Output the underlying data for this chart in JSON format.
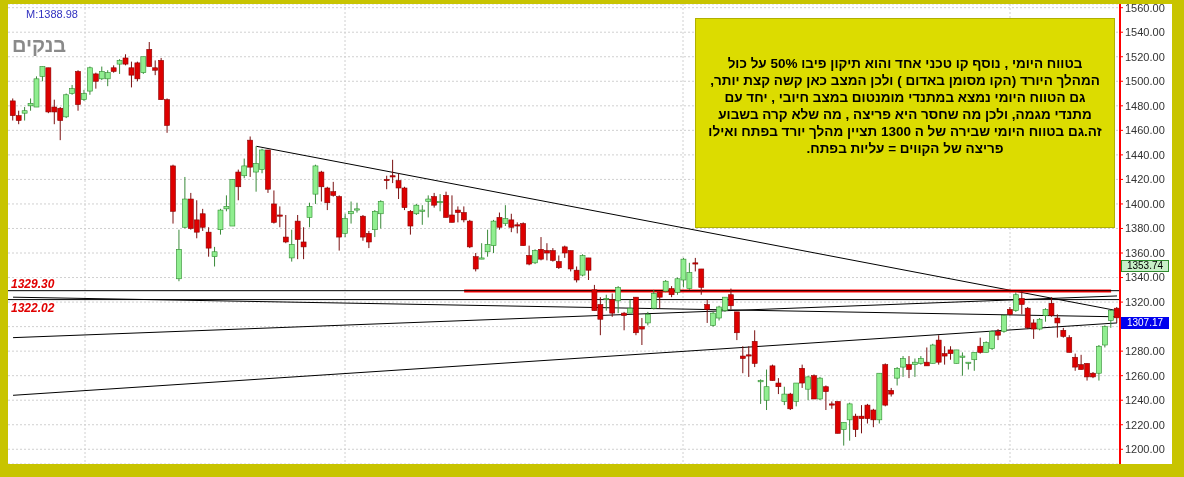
{
  "chart_data": {
    "type": "candlestick",
    "title": "בנקים",
    "categories": [
      null,
      null,
      null,
      null,
      null,
      null,
      null,
      null,
      null,
      null,
      null,
      null,
      null,
      null,
      null,
      null,
      null,
      null,
      null,
      null,
      null,
      null,
      null,
      null,
      null,
      null,
      null,
      null,
      null,
      null,
      null,
      null,
      null,
      null,
      null,
      null,
      null,
      null,
      null,
      null,
      null,
      null,
      null,
      null,
      null,
      null,
      null,
      null,
      null,
      null,
      null,
      null,
      null,
      null,
      null,
      null,
      null,
      null,
      null,
      null,
      null,
      null,
      null,
      null,
      null,
      null,
      null,
      null,
      null,
      null,
      null,
      null,
      null,
      null,
      null,
      null,
      null,
      null,
      null,
      null,
      null,
      null,
      null,
      null,
      null,
      null,
      null,
      null,
      null,
      null,
      null,
      null,
      null,
      null,
      null,
      null,
      null,
      null,
      null,
      null,
      null,
      null,
      null,
      null,
      null,
      null,
      null,
      null,
      null,
      null,
      null,
      null,
      null,
      null,
      null,
      null,
      null,
      null,
      null,
      null,
      null,
      null,
      null,
      null,
      null,
      null,
      null,
      null,
      null,
      null,
      null,
      null,
      null,
      null,
      null,
      null,
      null,
      null,
      null,
      null,
      null,
      null,
      null,
      null,
      null,
      null,
      null,
      null,
      null,
      null,
      null,
      null,
      null,
      null,
      null,
      null,
      null,
      null,
      null,
      null,
      null,
      null,
      null,
      null,
      null,
      null,
      null,
      null,
      null,
      null,
      null,
      null,
      null,
      null,
      null,
      null,
      null,
      null,
      null,
      null,
      null,
      null,
      null,
      null,
      null,
      null,
      null
    ],
    "ohlc": [
      [
        1484,
        1486,
        1468,
        1472
      ],
      [
        1472,
        1476,
        1465,
        1468
      ],
      [
        1474,
        1479,
        1468,
        1476
      ],
      [
        1480,
        1486,
        1476,
        1482
      ],
      [
        1479,
        1504,
        1479,
        1502
      ],
      [
        1504,
        1512,
        1500,
        1512
      ],
      [
        1511,
        1511,
        1474,
        1475
      ],
      [
        1479,
        1485,
        1465,
        1475
      ],
      [
        1478,
        1479,
        1452,
        1468
      ],
      [
        1471,
        1490,
        1470,
        1489
      ],
      [
        1490,
        1497,
        1489,
        1494
      ],
      [
        1508,
        1509,
        1476,
        1481
      ],
      [
        1485,
        1493,
        1484,
        1490
      ],
      [
        1492,
        1512,
        1489,
        1511
      ],
      [
        1506,
        1507,
        1494,
        1500
      ],
      [
        1502,
        1512,
        1501,
        1508
      ],
      [
        1502,
        1509,
        1496,
        1507
      ],
      [
        1511,
        1513,
        1507,
        1508
      ],
      [
        1514,
        1518,
        1506,
        1517
      ],
      [
        1519,
        1522,
        1513,
        1514
      ],
      [
        1511,
        1516,
        1495,
        1505
      ],
      [
        1515,
        1516,
        1500,
        1502
      ],
      [
        1507,
        1520,
        1506,
        1520
      ],
      [
        1526,
        1532,
        1512,
        1512
      ],
      [
        1511,
        1517,
        1505,
        1509
      ],
      [
        1517,
        1519,
        1485,
        1485
      ],
      [
        1485,
        1486,
        1458,
        1464
      ],
      [
        1431,
        1432,
        1384,
        1394
      ],
      [
        1339,
        1379,
        1337,
        1363
      ],
      [
        1381,
        1422,
        1380,
        1404
      ],
      [
        1404,
        1409,
        1379,
        1380
      ],
      [
        1387,
        1403,
        1372,
        1377
      ],
      [
        1392,
        1396,
        1378,
        1381
      ],
      [
        1377,
        1381,
        1357,
        1364
      ],
      [
        1357,
        1365,
        1349,
        1361
      ],
      [
        1379,
        1396,
        1375,
        1395
      ],
      [
        1396,
        1407,
        1394,
        1398
      ],
      [
        1382,
        1420,
        1382,
        1420
      ],
      [
        1426,
        1428,
        1403,
        1414
      ],
      [
        1423,
        1437,
        1421,
        1431
      ],
      [
        1452,
        1455,
        1422,
        1430
      ],
      [
        1426,
        1447,
        1410,
        1433
      ],
      [
        1428,
        1445,
        1425,
        1444
      ],
      [
        1444,
        1444,
        1409,
        1412
      ],
      [
        1400,
        1411,
        1384,
        1385
      ],
      [
        1391,
        1398,
        1381,
        1390
      ],
      [
        1373,
        1391,
        1368,
        1369
      ],
      [
        1356,
        1379,
        1353,
        1367
      ],
      [
        1386,
        1391,
        1355,
        1371
      ],
      [
        1369,
        1381,
        1355,
        1365
      ],
      [
        1389,
        1401,
        1381,
        1398
      ],
      [
        1408,
        1432,
        1400,
        1431
      ],
      [
        1426,
        1427,
        1402,
        1414
      ],
      [
        1413,
        1414,
        1395,
        1401
      ],
      [
        1410,
        1418,
        1406,
        1407
      ],
      [
        1406,
        1407,
        1362,
        1373
      ],
      [
        1376,
        1392,
        1373,
        1388
      ],
      [
        1392,
        1402,
        1384,
        1394
      ],
      [
        1395,
        1401,
        1393,
        1396
      ],
      [
        1390,
        1391,
        1370,
        1373
      ],
      [
        1376,
        1378,
        1364,
        1369
      ],
      [
        1379,
        1395,
        1373,
        1394
      ],
      [
        1392,
        1403,
        1380,
        1402
      ],
      [
        1420,
        1423,
        1412,
        1419
      ],
      [
        1423,
        1436,
        1417,
        1422
      ],
      [
        1419,
        1425,
        1404,
        1413
      ],
      [
        1413,
        1414,
        1395,
        1397
      ],
      [
        1394,
        1395,
        1375,
        1382
      ],
      [
        1392,
        1400,
        1391,
        1399
      ],
      [
        1394,
        1399,
        1383,
        1395
      ],
      [
        1402,
        1407,
        1389,
        1404
      ],
      [
        1406,
        1409,
        1397,
        1399
      ],
      [
        1401,
        1408,
        1394,
        1402
      ],
      [
        1407,
        1410,
        1389,
        1389
      ],
      [
        1391,
        1407,
        1385,
        1385
      ],
      [
        1395,
        1398,
        1385,
        1393
      ],
      [
        1393,
        1398,
        1385,
        1387
      ],
      [
        1386,
        1387,
        1364,
        1365
      ],
      [
        1357,
        1360,
        1345,
        1347
      ],
      [
        1355,
        1368,
        1355,
        1356
      ],
      [
        1361,
        1379,
        1357,
        1367
      ],
      [
        1366,
        1387,
        1360,
        1386
      ],
      [
        1389,
        1393,
        1379,
        1381
      ],
      [
        1384,
        1399,
        1382,
        1388
      ],
      [
        1387,
        1392,
        1377,
        1381
      ],
      [
        1383,
        1385,
        1376,
        1382
      ],
      [
        1384,
        1385,
        1366,
        1366
      ],
      [
        1358,
        1366,
        1350,
        1351
      ],
      [
        1352,
        1363,
        1351,
        1362
      ],
      [
        1363,
        1373,
        1354,
        1355
      ],
      [
        1362,
        1368,
        1354,
        1360
      ],
      [
        1362,
        1364,
        1353,
        1354
      ],
      [
        1353,
        1358,
        1347,
        1348
      ],
      [
        1365,
        1366,
        1356,
        1360
      ],
      [
        1362,
        1362,
        1345,
        1347
      ],
      [
        1346,
        1349,
        1336,
        1338
      ],
      [
        1342,
        1359,
        1341,
        1358
      ],
      [
        1356,
        1356,
        1338,
        1346
      ],
      [
        1330,
        1334,
        1313,
        1313
      ],
      [
        1318,
        1324,
        1293,
        1306
      ],
      [
        1322,
        1326,
        1313,
        1323
      ],
      [
        1322,
        1327,
        1308,
        1311
      ],
      [
        1321,
        1333,
        1311,
        1332
      ],
      [
        1311,
        1312,
        1297,
        1309
      ],
      [
        1311,
        1322,
        1311,
        1315
      ],
      [
        1324,
        1324,
        1293,
        1295
      ],
      [
        1300,
        1307,
        1285,
        1298
      ],
      [
        1303,
        1312,
        1301,
        1310
      ],
      [
        1315,
        1330,
        1314,
        1327
      ],
      [
        1328,
        1328,
        1315,
        1324
      ],
      [
        1329,
        1338,
        1328,
        1337
      ],
      [
        1331,
        1333,
        1324,
        1326
      ],
      [
        1328,
        1340,
        1326,
        1339
      ],
      [
        1338,
        1356,
        1332,
        1355
      ],
      [
        1331,
        1352,
        1330,
        1344
      ],
      [
        1352,
        1356,
        1345,
        1351
      ],
      [
        1347,
        1347,
        1326,
        1332
      ],
      [
        1318,
        1322,
        1303,
        1314
      ],
      [
        1301,
        1312,
        1300,
        1311
      ],
      [
        1307,
        1317,
        1305,
        1316
      ],
      [
        1313,
        1324,
        1312,
        1324
      ],
      [
        1326,
        1331,
        1314,
        1317
      ],
      [
        1312,
        1312,
        1289,
        1295
      ],
      [
        1276,
        1284,
        1262,
        1274
      ],
      [
        1277,
        1284,
        1259,
        1276
      ],
      [
        1288,
        1297,
        1267,
        1270
      ],
      [
        1255,
        1257,
        1237,
        1256
      ],
      [
        1240,
        1265,
        1232,
        1251
      ],
      [
        1268,
        1269,
        1256,
        1256
      ],
      [
        1254,
        1258,
        1245,
        1251
      ],
      [
        1239,
        1251,
        1236,
        1245
      ],
      [
        1245,
        1246,
        1232,
        1233
      ],
      [
        1239,
        1254,
        1235,
        1254
      ],
      [
        1266,
        1269,
        1250,
        1254
      ],
      [
        1249,
        1260,
        1240,
        1259
      ],
      [
        1260,
        1261,
        1241,
        1241
      ],
      [
        1241,
        1259,
        1240,
        1258
      ],
      [
        1251,
        1252,
        1232,
        1247
      ],
      [
        1237,
        1239,
        1233,
        1236
      ],
      [
        1239,
        1239,
        1213,
        1213
      ],
      [
        1216,
        1222,
        1203,
        1222
      ],
      [
        1224,
        1238,
        1207,
        1237
      ],
      [
        1227,
        1229,
        1210,
        1216
      ],
      [
        1227,
        1236,
        1213,
        1225
      ],
      [
        1236,
        1237,
        1221,
        1225
      ],
      [
        1232,
        1233,
        1218,
        1224
      ],
      [
        1224,
        1262,
        1221,
        1262
      ],
      [
        1269,
        1270,
        1235,
        1236
      ],
      [
        1248,
        1250,
        1243,
        1245
      ],
      [
        1258,
        1267,
        1252,
        1266
      ],
      [
        1267,
        1276,
        1259,
        1274
      ],
      [
        1269,
        1276,
        1258,
        1265
      ],
      [
        1269,
        1274,
        1259,
        1271
      ],
      [
        1270,
        1276,
        1269,
        1274
      ],
      [
        1271,
        1283,
        1268,
        1268
      ],
      [
        1270,
        1286,
        1270,
        1285
      ],
      [
        1289,
        1293,
        1269,
        1271
      ],
      [
        1278,
        1284,
        1269,
        1276
      ],
      [
        1281,
        1284,
        1273,
        1278
      ],
      [
        1270,
        1281,
        1270,
        1281
      ],
      [
        1275,
        1279,
        1260,
        1276
      ],
      [
        1270,
        1271,
        1265,
        1271
      ],
      [
        1273,
        1279,
        1264,
        1279
      ],
      [
        1284,
        1291,
        1278,
        1279
      ],
      [
        1279,
        1288,
        1279,
        1287
      ],
      [
        1282,
        1297,
        1281,
        1296
      ],
      [
        1296,
        1298,
        1289,
        1293
      ],
      [
        1296,
        1310,
        1295,
        1309
      ],
      [
        1314,
        1316,
        1309,
        1310
      ],
      [
        1313,
        1328,
        1312,
        1326
      ],
      [
        1323,
        1329,
        1310,
        1318
      ],
      [
        1315,
        1316,
        1298,
        1299
      ],
      [
        1303,
        1306,
        1290,
        1298
      ],
      [
        1298,
        1307,
        1297,
        1306
      ],
      [
        1309,
        1315,
        1304,
        1314
      ],
      [
        1319,
        1324,
        1308,
        1309
      ],
      [
        1307,
        1310,
        1291,
        1303
      ],
      [
        1297,
        1299,
        1291,
        1292
      ],
      [
        1291,
        1293,
        1279,
        1279
      ],
      [
        1275,
        1278,
        1264,
        1267
      ],
      [
        1269,
        1277,
        1265,
        1265
      ],
      [
        1270,
        1270,
        1256,
        1259
      ],
      [
        1262,
        1263,
        1258,
        1259
      ],
      [
        1262,
        1285,
        1256,
        1284
      ],
      [
        1285,
        1301,
        1283,
        1300
      ],
      [
        1305,
        1314,
        1299,
        1313
      ],
      [
        1315,
        1316,
        1303,
        1307.17
      ]
    ],
    "series": [
      {
        "type": "line",
        "color": "#000000",
        "values": [
          null,
          null,
          null,
          null,
          null,
          null,
          null,
          null,
          null,
          null,
          null,
          null,
          null,
          null,
          null,
          null,
          null,
          null,
          null,
          null,
          null,
          null,
          null,
          null,
          null,
          null,
          null,
          null,
          null,
          null,
          null,
          null,
          null,
          null,
          null,
          null,
          null,
          null,
          null,
          null,
          null,
          1447,
          null,
          null,
          null,
          null,
          null,
          null,
          null,
          null,
          null,
          null,
          null,
          null,
          null,
          null,
          null,
          null,
          null,
          null,
          null,
          null,
          null,
          null,
          null,
          null,
          null,
          null,
          null,
          null,
          null,
          null,
          null,
          null,
          null,
          null,
          null,
          null,
          null,
          null,
          null,
          null,
          null,
          null,
          null,
          null,
          null,
          null,
          null,
          null,
          null,
          null,
          null,
          null,
          null,
          null,
          null,
          null,
          null,
          null,
          null,
          null,
          null,
          null,
          null,
          null,
          null,
          null,
          null,
          null,
          null,
          null,
          null,
          null,
          null,
          null,
          null,
          null,
          null,
          null,
          null,
          null,
          null,
          null,
          null,
          null,
          null,
          null,
          null,
          null,
          null,
          null,
          null,
          null,
          null,
          null,
          null,
          null,
          null,
          null,
          null,
          null,
          null,
          null,
          null,
          null,
          null,
          null,
          null,
          null,
          null,
          null,
          null,
          null,
          null,
          null,
          null,
          null,
          null,
          null,
          null,
          null,
          null,
          null,
          null,
          null,
          null,
          null,
          null,
          null,
          null,
          null,
          null,
          null,
          null,
          null,
          null,
          null,
          null,
          null,
          null,
          null,
          null,
          null,
          null,
          null,
          1313
        ]
      },
      {
        "type": "line",
        "color": "#000000",
        "values": [
          1291,
          null,
          null,
          null,
          null,
          null,
          null,
          null,
          null,
          null,
          null,
          null,
          null,
          null,
          null,
          null,
          null,
          null,
          null,
          null,
          null,
          null,
          null,
          null,
          null,
          null,
          null,
          null,
          null,
          null,
          null,
          null,
          null,
          null,
          null,
          null,
          null,
          null,
          null,
          null,
          null,
          null,
          null,
          null,
          null,
          null,
          null,
          null,
          null,
          null,
          null,
          null,
          null,
          null,
          null,
          null,
          null,
          null,
          null,
          null,
          null,
          null,
          null,
          null,
          null,
          null,
          null,
          null,
          null,
          null,
          null,
          null,
          null,
          null,
          null,
          null,
          null,
          null,
          null,
          null,
          null,
          null,
          null,
          null,
          null,
          null,
          null,
          null,
          null,
          null,
          null,
          null,
          null,
          null,
          null,
          null,
          null,
          null,
          null,
          null,
          null,
          null,
          null,
          null,
          null,
          null,
          null,
          null,
          null,
          null,
          null,
          null,
          null,
          null,
          null,
          null,
          null,
          null,
          null,
          null,
          null,
          null,
          null,
          null,
          null,
          null,
          null,
          null,
          null,
          null,
          null,
          null,
          null,
          null,
          null,
          null,
          null,
          null,
          null,
          null,
          null,
          null,
          null,
          null,
          null,
          null,
          null,
          null,
          null,
          null,
          null,
          null,
          null,
          null,
          null,
          null,
          null,
          null,
          null,
          null,
          null,
          null,
          null,
          null,
          null,
          null,
          null,
          null,
          null,
          null,
          null,
          null,
          null,
          null,
          null,
          null,
          null,
          null,
          null,
          null,
          null,
          null,
          null,
          null,
          null,
          null,
          1325
        ]
      },
      {
        "type": "line",
        "color": "#000000",
        "values": [
          1324,
          null,
          null,
          null,
          null,
          null,
          null,
          null,
          null,
          null,
          null,
          null,
          null,
          null,
          null,
          null,
          null,
          null,
          null,
          null,
          null,
          null,
          null,
          null,
          null,
          null,
          null,
          null,
          null,
          null,
          null,
          null,
          null,
          null,
          null,
          null,
          null,
          null,
          null,
          null,
          null,
          null,
          null,
          null,
          null,
          null,
          null,
          null,
          null,
          null,
          null,
          null,
          null,
          null,
          null,
          null,
          null,
          null,
          null,
          null,
          null,
          null,
          null,
          null,
          null,
          null,
          null,
          null,
          null,
          null,
          null,
          null,
          null,
          null,
          null,
          null,
          null,
          null,
          null,
          null,
          null,
          null,
          null,
          null,
          null,
          null,
          null,
          null,
          null,
          null,
          null,
          null,
          null,
          null,
          null,
          null,
          null,
          null,
          null,
          null,
          null,
          null,
          null,
          null,
          null,
          null,
          null,
          null,
          null,
          null,
          null,
          null,
          null,
          null,
          null,
          null,
          null,
          null,
          null,
          null,
          null,
          null,
          null,
          null,
          null,
          null,
          null,
          null,
          null,
          null,
          null,
          null,
          null,
          null,
          null,
          null,
          null,
          null,
          null,
          null,
          null,
          null,
          null,
          null,
          null,
          null,
          null,
          null,
          null,
          null,
          null,
          null,
          null,
          null,
          null,
          null,
          null,
          null,
          null,
          null,
          null,
          null,
          null,
          null,
          null,
          null,
          null,
          null,
          null,
          null,
          null,
          null,
          null,
          null,
          null,
          null,
          null,
          null,
          null,
          null,
          null,
          null,
          null,
          null,
          null,
          null,
          1308
        ]
      },
      {
        "type": "line",
        "color": "#000000",
        "values": [
          1244,
          null,
          null,
          null,
          null,
          null,
          null,
          null,
          null,
          null,
          null,
          null,
          null,
          null,
          null,
          null,
          null,
          null,
          null,
          null,
          null,
          null,
          null,
          null,
          null,
          null,
          null,
          null,
          null,
          null,
          null,
          null,
          null,
          null,
          null,
          null,
          null,
          null,
          null,
          null,
          null,
          null,
          null,
          null,
          null,
          null,
          null,
          null,
          null,
          null,
          null,
          null,
          null,
          null,
          null,
          null,
          null,
          null,
          null,
          null,
          null,
          null,
          null,
          null,
          null,
          null,
          null,
          null,
          null,
          null,
          null,
          null,
          null,
          null,
          null,
          null,
          null,
          null,
          null,
          null,
          null,
          null,
          null,
          null,
          null,
          null,
          null,
          null,
          null,
          null,
          null,
          null,
          null,
          null,
          null,
          null,
          null,
          null,
          null,
          null,
          null,
          null,
          null,
          null,
          null,
          null,
          null,
          null,
          null,
          null,
          null,
          null,
          null,
          null,
          null,
          null,
          null,
          null,
          null,
          null,
          null,
          null,
          null,
          null,
          null,
          null,
          null,
          null,
          null,
          null,
          null,
          null,
          null,
          null,
          null,
          null,
          null,
          null,
          null,
          null,
          null,
          null,
          null,
          null,
          null,
          null,
          null,
          null,
          null,
          null,
          null,
          null,
          null,
          null,
          null,
          null,
          null,
          null,
          null,
          null,
          null,
          null,
          null,
          null,
          null,
          null,
          null,
          null,
          null,
          null,
          null,
          null,
          null,
          null,
          null,
          null,
          null,
          null,
          null,
          null,
          null,
          null,
          null,
          null,
          null,
          null,
          1303
        ]
      },
      {
        "type": "line",
        "color": "#ff0000",
        "values": [
          null,
          null,
          null,
          null,
          null,
          null,
          null,
          null,
          null,
          null,
          null,
          null,
          null,
          null,
          null,
          null,
          null,
          null,
          null,
          null,
          null,
          null,
          null,
          null,
          null,
          null,
          null,
          null,
          null,
          null,
          null,
          null,
          null,
          null,
          null,
          null,
          null,
          null,
          null,
          null,
          null,
          null,
          null,
          null,
          null,
          null,
          null,
          null,
          null,
          null,
          null,
          null,
          null,
          null,
          null,
          null,
          null,
          null,
          null,
          null,
          null,
          null,
          null,
          null,
          null,
          null,
          null,
          null,
          null,
          null,
          null,
          null,
          null,
          null,
          null,
          null,
          1329,
          null,
          null,
          null,
          null,
          null,
          null,
          null,
          null,
          null,
          null,
          null,
          null,
          null,
          null,
          null,
          null,
          null,
          null,
          null,
          null,
          null,
          null,
          null,
          null,
          null,
          null,
          null,
          null,
          null,
          null,
          null,
          null,
          null,
          null,
          null,
          null,
          null,
          null,
          null,
          null,
          null,
          null,
          null,
          null,
          null,
          null,
          null,
          null,
          null,
          null,
          null,
          null,
          null,
          null,
          null,
          null,
          null,
          null,
          null,
          null,
          null,
          null,
          null,
          null,
          null,
          null,
          null,
          null,
          null,
          null,
          null,
          null,
          null,
          null,
          null,
          null,
          null,
          null,
          null,
          null,
          null,
          null,
          null,
          null,
          null,
          null,
          null,
          null,
          null,
          null,
          null,
          null,
          null,
          null,
          null,
          null,
          null,
          null,
          null,
          null,
          null,
          null,
          null,
          null,
          null,
          null,
          null,
          null,
          1329,
          null
        ]
      }
    ],
    "ref_lines": [
      {
        "axis": "y",
        "value": 1329.3,
        "label": "1329.30",
        "color": "#000000"
      },
      {
        "axis": "y",
        "value": 1322.02,
        "label": "1322.02",
        "color": "#000000"
      }
    ],
    "ylim": [
      1188,
      1563
    ],
    "yticks": [
      {
        "value": 1200,
        "label": "1200.00"
      },
      {
        "value": 1220,
        "label": "1220.00"
      },
      {
        "value": 1240,
        "label": "1240.00"
      },
      {
        "value": 1260,
        "label": "1260.00"
      },
      {
        "value": 1280,
        "label": "1280.00"
      },
      {
        "value": 1300,
        "label": null
      },
      {
        "value": 1320,
        "label": "1320.00"
      },
      {
        "value": 1340,
        "label": "1340.00"
      },
      {
        "value": 1360,
        "label": "1360.00"
      },
      {
        "value": 1380,
        "label": "1380.00"
      },
      {
        "value": 1400,
        "label": "1400.00"
      },
      {
        "value": 1420,
        "label": "1420.00"
      },
      {
        "value": 1440,
        "label": "1440.00"
      },
      {
        "value": 1460,
        "label": "1460.00"
      },
      {
        "value": 1480,
        "label": "1480.00"
      },
      {
        "value": 1500,
        "label": "1500.00"
      },
      {
        "value": 1520,
        "label": "1520.00"
      },
      {
        "value": 1540,
        "label": "1540.00"
      },
      {
        "value": 1560,
        "label": "1560.00"
      }
    ],
    "tick_labels": "y",
    "grid": true,
    "annotations": [
      "M:1388.98",
      "בטווח היומי , נוסף קו טכני אחד והוא תיקון פיבו 50% על כול המהלך היורד (הקו מסומן באדום ) ולכן המצב כאן קשה קצת יותר,",
      "גם הטווח היומי נמצא במתנדי מומנטום במצב חיובי , יחד עם מתנדי מגמה, ולכן מה שחסר היא פריצה , מה שלא קרה בשבוע זה.גם בטווח היומי שבירה של ה 1300 תציין מהלך יורד בפתח ואילו פריצה של הקווים = עליות בפתח.",
      "1353.74",
      "1307.17"
    ]
  }
}
